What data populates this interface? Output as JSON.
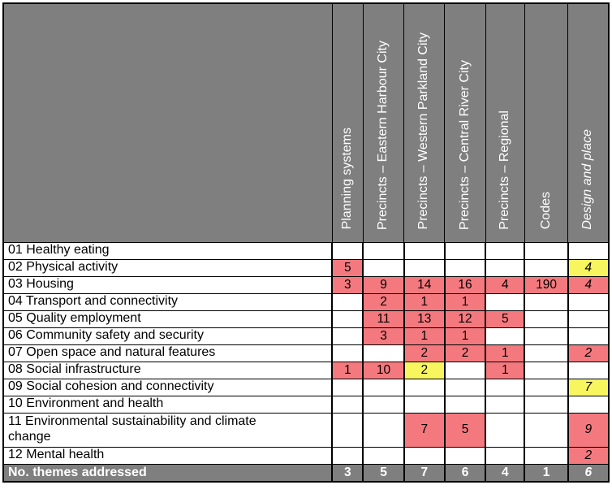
{
  "colors": {
    "header_gray": "#7F7F7F",
    "red": "#F4797E",
    "yellow": "#F8F65F",
    "grid": "#000000",
    "header_text": "#FFFFFF"
  },
  "table": {
    "columns": [
      {
        "label": "Planning systems",
        "italic": false
      },
      {
        "label": "Precincts – Eastern Harbour City",
        "italic": false
      },
      {
        "label": "Precincts – Western Parkland City",
        "italic": false
      },
      {
        "label": "Precincts – Central River City",
        "italic": false
      },
      {
        "label": "Precincts – Regional",
        "italic": false
      },
      {
        "label": "Codes",
        "italic": false
      },
      {
        "label": "Design and place",
        "italic": true
      }
    ],
    "rows": [
      {
        "label": "01 Healthy eating",
        "cells": [
          null,
          null,
          null,
          null,
          null,
          null,
          null
        ]
      },
      {
        "label": "02 Physical activity",
        "cells": [
          {
            "v": "5",
            "bg": "red"
          },
          null,
          null,
          null,
          null,
          null,
          {
            "v": "4",
            "bg": "yellow"
          }
        ]
      },
      {
        "label": "03 Housing",
        "cells": [
          {
            "v": "3",
            "bg": "red"
          },
          {
            "v": "9",
            "bg": "red"
          },
          {
            "v": "14",
            "bg": "red"
          },
          {
            "v": "16",
            "bg": "red"
          },
          {
            "v": "4",
            "bg": "red"
          },
          {
            "v": "190",
            "bg": "red"
          },
          {
            "v": "4",
            "bg": "red"
          }
        ]
      },
      {
        "label": "04 Transport and connectivity",
        "cells": [
          null,
          {
            "v": "2",
            "bg": "red"
          },
          {
            "v": "1",
            "bg": "red"
          },
          {
            "v": "1",
            "bg": "red"
          },
          null,
          null,
          null
        ]
      },
      {
        "label": "05 Quality employment",
        "cells": [
          null,
          {
            "v": "11",
            "bg": "red"
          },
          {
            "v": "13",
            "bg": "red"
          },
          {
            "v": "12",
            "bg": "red"
          },
          {
            "v": "5",
            "bg": "red"
          },
          null,
          null
        ]
      },
      {
        "label": "06 Community safety and security",
        "cells": [
          null,
          {
            "v": "3",
            "bg": "red"
          },
          {
            "v": "1",
            "bg": "red"
          },
          {
            "v": "1",
            "bg": "red"
          },
          null,
          null,
          null
        ]
      },
      {
        "label": "07 Open space and natural features",
        "cells": [
          null,
          null,
          {
            "v": "2",
            "bg": "red"
          },
          {
            "v": "2",
            "bg": "red"
          },
          {
            "v": "1",
            "bg": "red"
          },
          null,
          {
            "v": "2",
            "bg": "red"
          }
        ]
      },
      {
        "label": "08 Social infrastructure",
        "cells": [
          {
            "v": "1",
            "bg": "red"
          },
          {
            "v": "10",
            "bg": "red"
          },
          {
            "v": "2",
            "bg": "yellow"
          },
          null,
          {
            "v": "1",
            "bg": "red"
          },
          null,
          null
        ]
      },
      {
        "label": "09 Social cohesion and connectivity",
        "cells": [
          null,
          null,
          null,
          null,
          null,
          null,
          {
            "v": "7",
            "bg": "yellow"
          }
        ]
      },
      {
        "label": "10 Environment and health",
        "cells": [
          null,
          null,
          null,
          null,
          null,
          null,
          null
        ]
      },
      {
        "label": "11 Environmental sustainability and climate change",
        "tall": true,
        "cells": [
          null,
          null,
          {
            "v": "7",
            "bg": "red"
          },
          {
            "v": "5",
            "bg": "red"
          },
          null,
          null,
          {
            "v": "9",
            "bg": "red"
          }
        ]
      },
      {
        "label": "12 Mental health",
        "cells": [
          null,
          null,
          null,
          null,
          null,
          null,
          {
            "v": "2",
            "bg": "red"
          }
        ]
      }
    ],
    "footer": {
      "label": "No. themes addressed",
      "values": [
        "3",
        "5",
        "7",
        "6",
        "4",
        "1",
        "6"
      ]
    }
  },
  "chart_data": {
    "type": "heatmap",
    "title": "",
    "x_categories": [
      "Planning systems",
      "Precincts – Eastern Harbour City",
      "Precincts – Western Parkland City",
      "Precincts – Central River City",
      "Precincts – Regional",
      "Codes",
      "Design and place"
    ],
    "y_categories": [
      "01 Healthy eating",
      "02 Physical activity",
      "03 Housing",
      "04 Transport and connectivity",
      "05 Quality employment",
      "06 Community safety and security",
      "07 Open space and natural features",
      "08 Social infrastructure",
      "09 Social cohesion and connectivity",
      "10 Environment and health",
      "11 Environmental sustainability and climate change",
      "12 Mental health"
    ],
    "values": [
      [
        null,
        null,
        null,
        null,
        null,
        null,
        null
      ],
      [
        5,
        null,
        null,
        null,
        null,
        null,
        4
      ],
      [
        3,
        9,
        14,
        16,
        4,
        190,
        4
      ],
      [
        null,
        2,
        1,
        1,
        null,
        null,
        null
      ],
      [
        null,
        11,
        13,
        12,
        5,
        null,
        null
      ],
      [
        null,
        3,
        1,
        1,
        null,
        null,
        null
      ],
      [
        null,
        null,
        2,
        2,
        1,
        null,
        2
      ],
      [
        1,
        10,
        2,
        null,
        1,
        null,
        null
      ],
      [
        null,
        null,
        null,
        null,
        null,
        null,
        7
      ],
      [
        null,
        null,
        null,
        null,
        null,
        null,
        null
      ],
      [
        null,
        null,
        7,
        5,
        null,
        null,
        9
      ],
      [
        null,
        null,
        null,
        null,
        null,
        null,
        2
      ]
    ],
    "cell_highlight": [
      [
        "",
        "",
        "",
        "",
        "",
        "",
        ""
      ],
      [
        "red",
        "",
        "",
        "",
        "",
        "",
        "yellow"
      ],
      [
        "red",
        "red",
        "red",
        "red",
        "red",
        "red",
        "red"
      ],
      [
        "",
        "red",
        "red",
        "red",
        "",
        "",
        ""
      ],
      [
        "",
        "red",
        "red",
        "red",
        "red",
        "",
        ""
      ],
      [
        "",
        "red",
        "red",
        "red",
        "",
        "",
        ""
      ],
      [
        "",
        "",
        "red",
        "red",
        "red",
        "",
        "red"
      ],
      [
        "red",
        "red",
        "yellow",
        "",
        "red",
        "",
        ""
      ],
      [
        "",
        "",
        "",
        "",
        "",
        "",
        "yellow"
      ],
      [
        "",
        "",
        "",
        "",
        "",
        "",
        ""
      ],
      [
        "",
        "",
        "red",
        "red",
        "",
        "",
        "red"
      ],
      [
        "",
        "",
        "",
        "",
        "",
        "",
        "red"
      ]
    ],
    "totals_row": {
      "label": "No. themes addressed",
      "values": [
        3,
        5,
        7,
        6,
        4,
        1,
        6
      ]
    },
    "legend_position": "none",
    "grid": true
  }
}
